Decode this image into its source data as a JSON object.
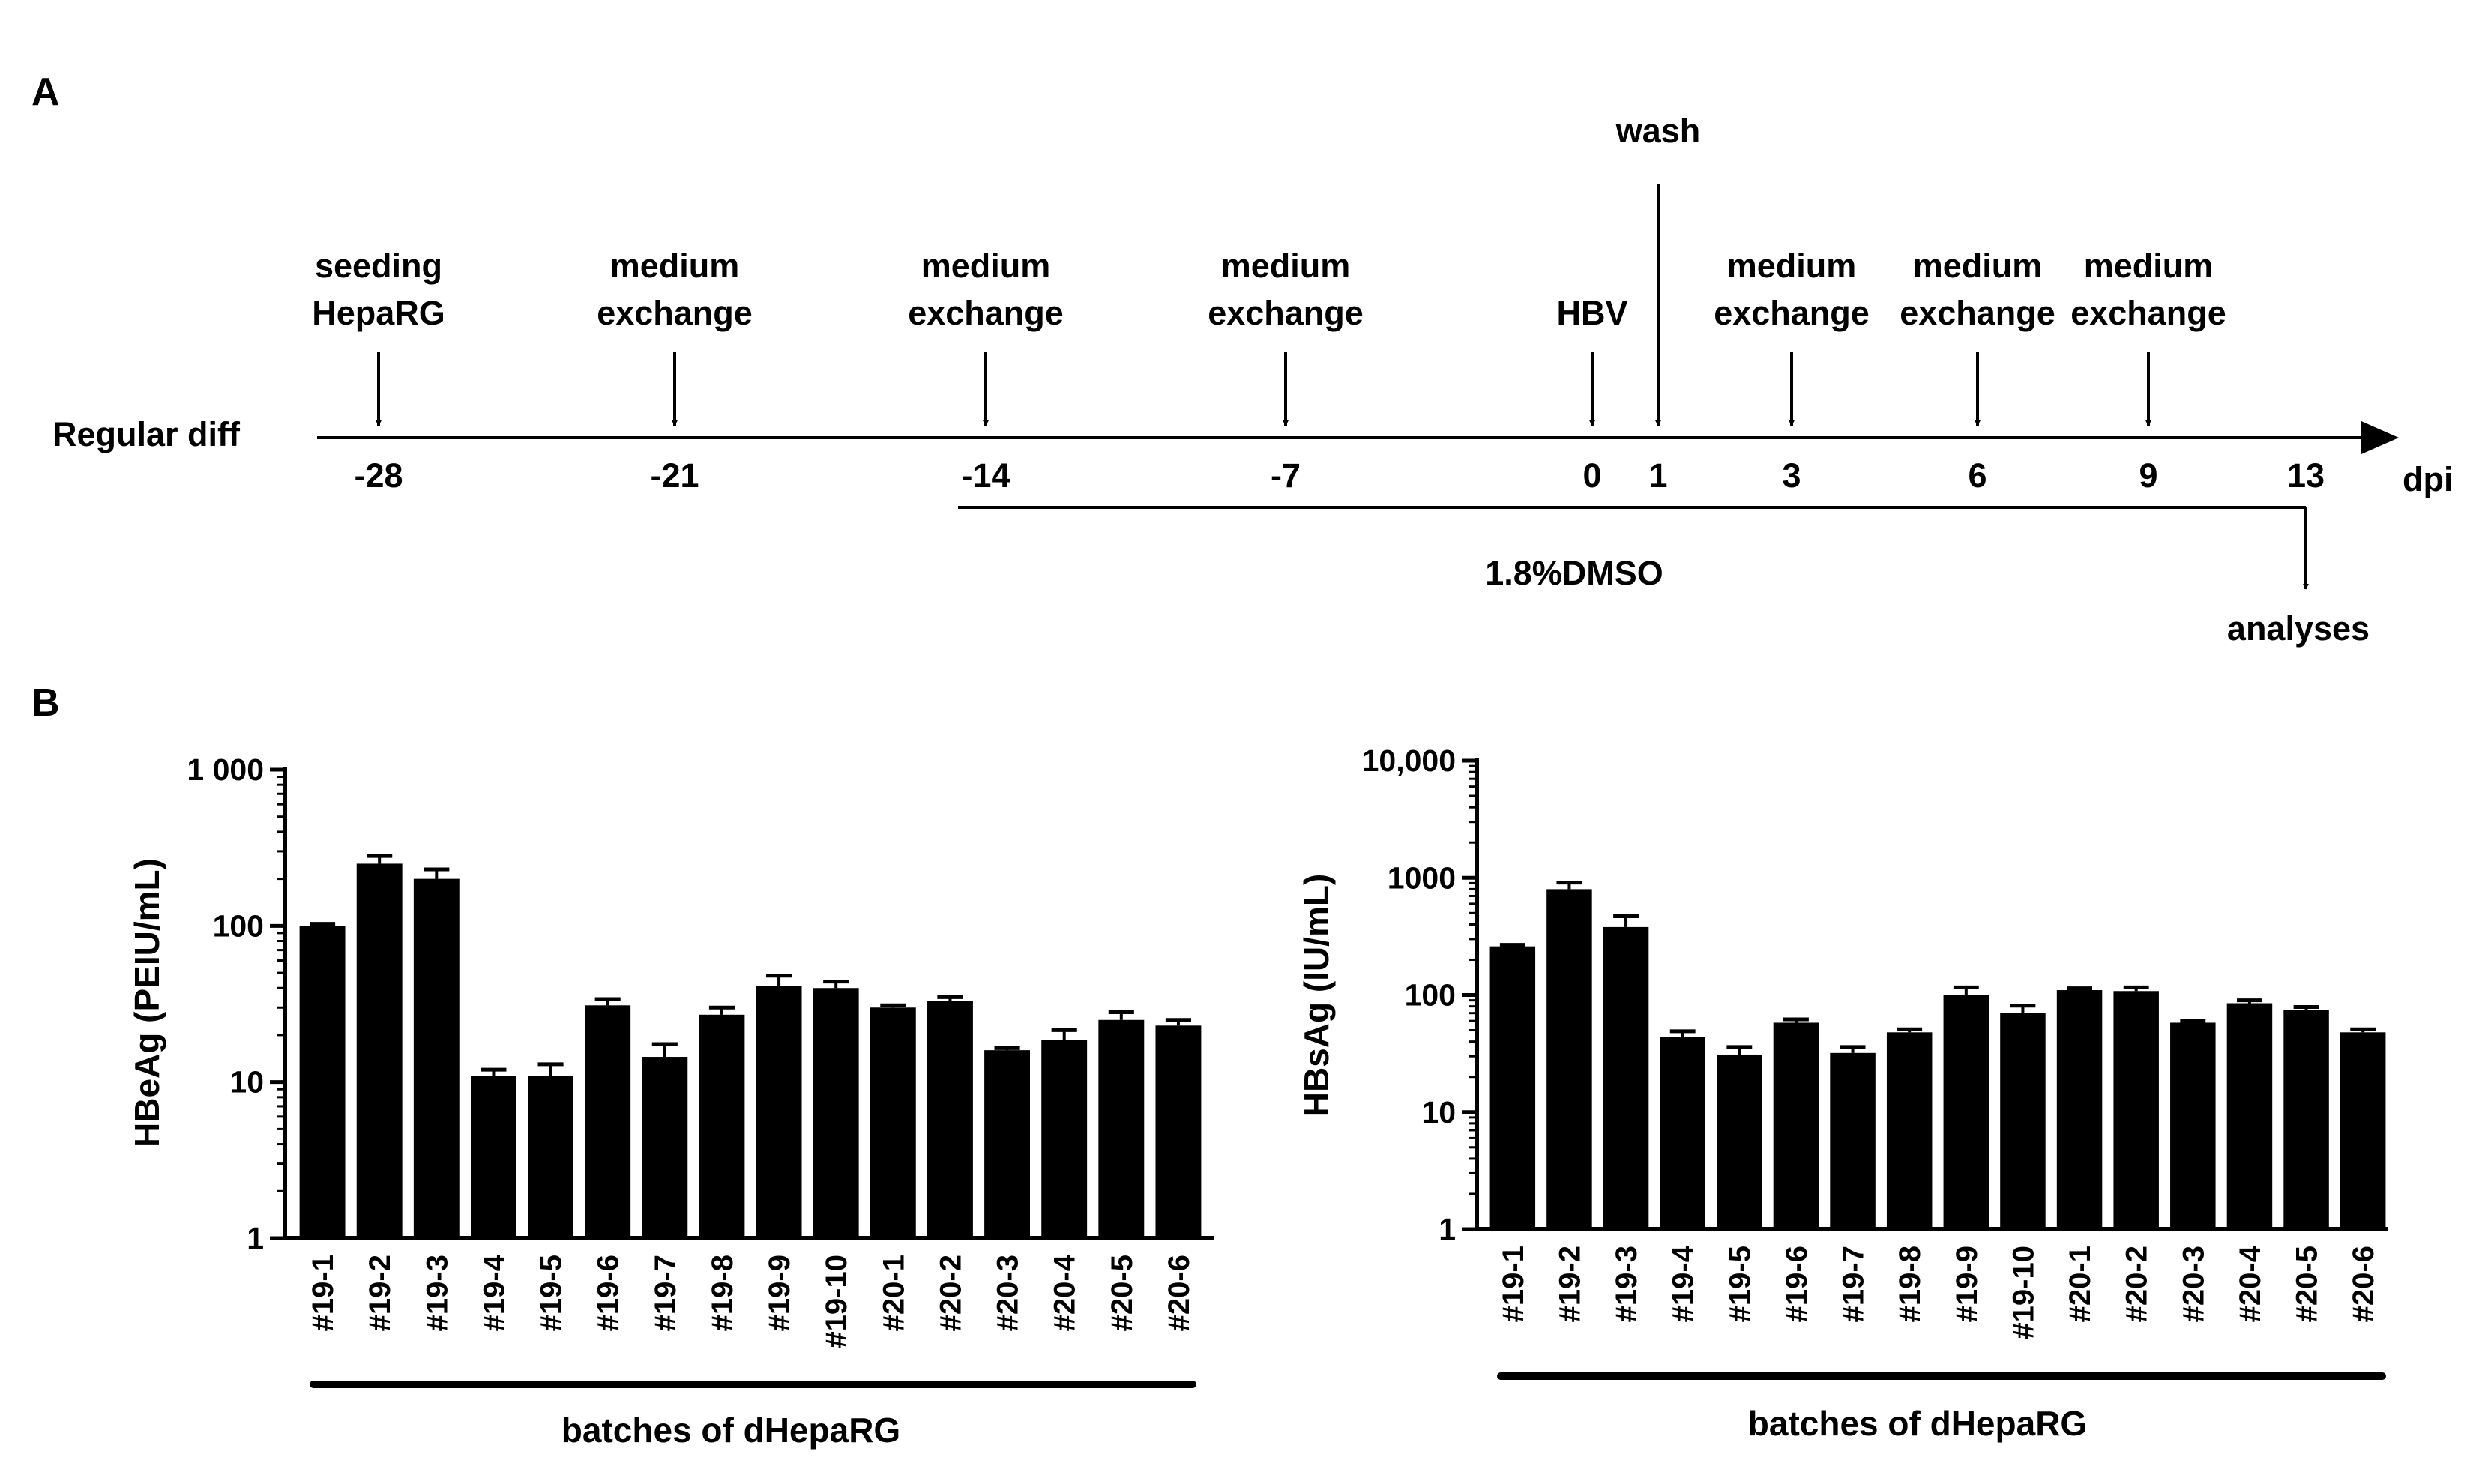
{
  "figure": {
    "panel_a_label": "A",
    "panel_b_label": "B"
  },
  "timeline": {
    "row_label": "Regular diff",
    "axis_unit": "dpi",
    "ticks": [
      "-28",
      "-21",
      "-14",
      "-7",
      "0",
      "1",
      "3",
      "6",
      "9",
      "13"
    ],
    "events": [
      {
        "day": "-28",
        "lines": [
          "seeding",
          "HepaRG"
        ]
      },
      {
        "day": "-21",
        "lines": [
          "medium",
          "exchange"
        ]
      },
      {
        "day": "-14",
        "lines": [
          "medium",
          "exchange"
        ]
      },
      {
        "day": "-7",
        "lines": [
          "medium",
          "exchange"
        ]
      },
      {
        "day": "0",
        "lines": [
          "HBV"
        ]
      },
      {
        "day": "1",
        "lines": [
          "wash"
        ]
      },
      {
        "day": "3",
        "lines": [
          "medium",
          "exchange"
        ]
      },
      {
        "day": "6",
        "lines": [
          "medium",
          "exchange"
        ]
      },
      {
        "day": "9",
        "lines": [
          "medium",
          "exchange"
        ]
      }
    ],
    "treatment": {
      "label": "1.8%DMSO",
      "from": "-14",
      "to": "13"
    },
    "end_event": {
      "day": "13",
      "label": "analyses"
    }
  },
  "chart_data": [
    {
      "type": "bar",
      "ylabel": "HBeAg (PEIU/mL)",
      "xlabel": "batches of dHepaRG",
      "yscale": "log",
      "ylim": [
        1,
        1000
      ],
      "ytick_labels": [
        "1",
        "10",
        "100",
        "1 000"
      ],
      "categories": [
        "#19-1",
        "#19-2",
        "#19-3",
        "#19-4",
        "#19-5",
        "#19-6",
        "#19-7",
        "#19-8",
        "#19-9",
        "#19-10",
        "#20-1",
        "#20-2",
        "#20-3",
        "#20-4",
        "#20-5",
        "#20-6"
      ],
      "values": [
        100,
        250,
        200,
        11,
        11,
        31,
        14.5,
        27,
        41,
        40,
        30,
        33,
        16,
        18.5,
        25,
        23
      ],
      "errors": [
        3,
        30,
        30,
        1,
        2,
        3,
        3,
        3,
        7,
        4,
        1,
        2,
        0.5,
        3,
        3,
        2
      ],
      "grid": false,
      "bar_color": "#000000"
    },
    {
      "type": "bar",
      "ylabel": "HBsAg (IU/mL)",
      "xlabel": "batches of dHepaRG",
      "yscale": "log",
      "ylim": [
        1,
        10000
      ],
      "ytick_labels": [
        "1",
        "10",
        "100",
        "1000",
        "10,000"
      ],
      "categories": [
        "#19-1",
        "#19-2",
        "#19-3",
        "#19-4",
        "#19-5",
        "#19-6",
        "#19-7",
        "#19-8",
        "#19-9",
        "#19-10",
        "#20-1",
        "#20-2",
        "#20-3",
        "#20-4",
        "#20-5",
        "#20-6"
      ],
      "values": [
        260,
        800,
        380,
        44,
        31,
        58,
        32,
        48,
        100,
        70,
        110,
        108,
        58,
        85,
        75,
        48
      ],
      "errors": [
        8,
        110,
        90,
        5,
        5,
        4,
        4,
        3,
        16,
        11,
        4,
        8,
        2,
        5,
        4,
        3
      ],
      "grid": false,
      "bar_color": "#000000"
    }
  ]
}
